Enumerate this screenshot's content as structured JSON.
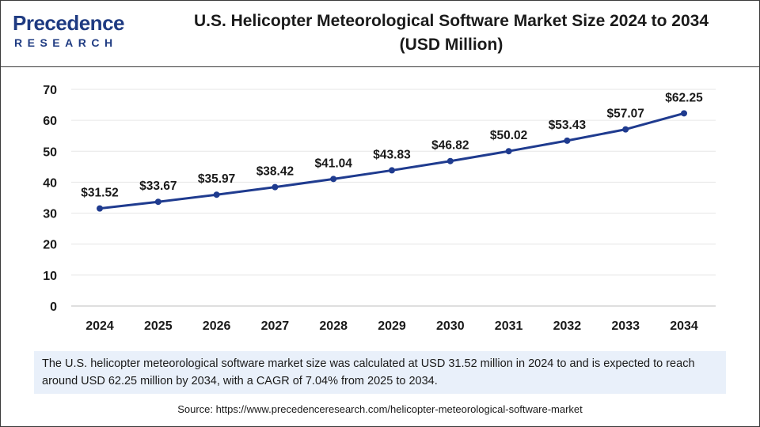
{
  "header": {
    "logo_word": "Precedence",
    "logo_sub": "RESEARCH",
    "title_line1": "U.S. Helicopter Meteorological Software Market Size 2024 to 2034",
    "title_line2": "(USD Million)"
  },
  "colors": {
    "line": "#1f3b8f",
    "grid": "#e6e6e6",
    "brand": "#1f3b82",
    "summary_bg": "#e9f0fa"
  },
  "chart_data": {
    "type": "line",
    "title": "U.S. Helicopter Meteorological Software Market Size 2024 to 2034 (USD Million)",
    "xlabel": "",
    "ylabel": "",
    "categories": [
      "2024",
      "2025",
      "2026",
      "2027",
      "2028",
      "2029",
      "2030",
      "2031",
      "2032",
      "2033",
      "2034"
    ],
    "values": [
      31.52,
      33.67,
      35.97,
      38.42,
      41.04,
      43.83,
      46.82,
      50.02,
      53.43,
      57.07,
      62.25
    ],
    "data_labels": [
      "$31.52",
      "$33.67",
      "$35.97",
      "$38.42",
      "$41.04",
      "$43.83",
      "$46.82",
      "$50.02",
      "$53.43",
      "$57.07",
      "$62.25"
    ],
    "y_ticks": [
      0,
      10,
      20,
      30,
      40,
      50,
      60,
      70
    ],
    "ylim": [
      0,
      70
    ],
    "grid": true,
    "legend": "none"
  },
  "summary": {
    "text": "The U.S. helicopter meteorological software market size was calculated at USD 31.52 million in 2024 to and is expected to reach around USD 62.25 million by 2034, with a CAGR of 7.04% from 2025 to 2034."
  },
  "source": {
    "text": "Source: https://www.precedenceresearch.com/helicopter-meteorological-software-market"
  }
}
